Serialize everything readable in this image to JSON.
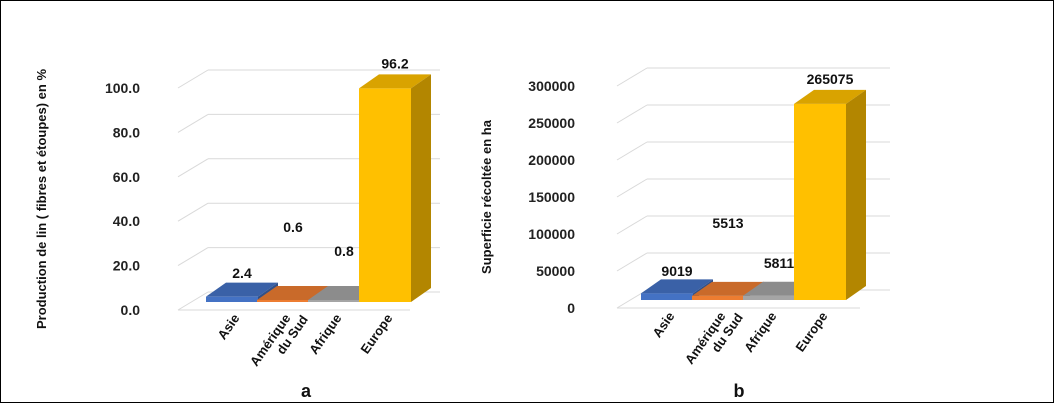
{
  "chart_data": [
    {
      "type": "bar",
      "panel_label": "a",
      "ylabel": "Production de lin ( fibres et étoupes) en %",
      "categories": [
        "Asie",
        "Amérique|du Sud",
        "Afrique",
        "Europe"
      ],
      "values": [
        2.4,
        0.6,
        0.8,
        96.2
      ],
      "value_labels": [
        "2.4",
        "0.6",
        "0.8",
        "96.2"
      ],
      "ylim": [
        0,
        100
      ],
      "yticks": [
        "0.0",
        "20.0",
        "40.0",
        "60.0",
        "80.0",
        "100.0"
      ],
      "colors": [
        "#4472C4",
        "#ED7D31",
        "#A5A5A5",
        "#FFC000"
      ],
      "grid": true
    },
    {
      "type": "bar",
      "panel_label": "b",
      "ylabel": "Superficie récoltée en ha",
      "categories": [
        "Asie",
        "Amérique|du Sud",
        "Afrique",
        "Europe"
      ],
      "values": [
        9019,
        5513,
        5811,
        265075
      ],
      "value_labels": [
        "9019",
        "5513",
        "5811",
        "265075"
      ],
      "ylim": [
        0,
        300000
      ],
      "yticks": [
        "0",
        "50000",
        "100000",
        "150000",
        "200000",
        "250000",
        "300000"
      ],
      "colors": [
        "#4472C4",
        "#ED7D31",
        "#A5A5A5",
        "#FFC000"
      ],
      "grid": true
    }
  ]
}
